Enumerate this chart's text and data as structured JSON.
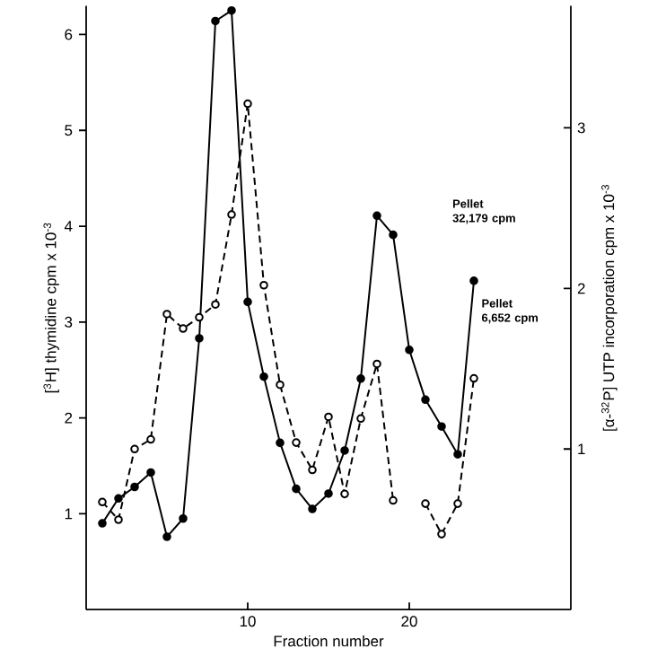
{
  "chart_data": {
    "type": "line",
    "xlabel": "Fraction number",
    "ylabel": "[$^{3}$H] thymidine  cpm x 10$^{-3}$",
    "y2label": "[α-$^{32}$P] UTP incorporation  cpm x 10$^{-3}$",
    "x": [
      1,
      2,
      3,
      4,
      5,
      6,
      7,
      8,
      9,
      10,
      11,
      12,
      13,
      14,
      15,
      16,
      17,
      18,
      19,
      20,
      21,
      22,
      23,
      24
    ],
    "series": [
      {
        "color": "#000000",
        "line_style": "solid",
        "marker": "circle",
        "values": [
          0.9,
          1.16,
          1.28,
          1.43,
          0.76,
          0.95,
          2.83,
          6.14,
          6.25,
          3.21,
          2.43,
          1.74,
          1.26,
          1.05,
          1.21,
          1.66,
          2.41,
          4.11,
          3.91,
          2.71,
          2.19,
          1.91,
          1.62,
          3.43
        ]
      },
      {
        "color": "#000000",
        "line_style": "dashed",
        "marker": "circle",
        "axis": "y2",
        "values": [
          0.67,
          0.56,
          1.0,
          1.06,
          1.84,
          1.75,
          1.82,
          1.9,
          2.46,
          3.15,
          2.02,
          1.4,
          1.04,
          0.87,
          1.2,
          0.72,
          1.19,
          1.53,
          0.68,
          null,
          0.66,
          0.47,
          0.66,
          1.44
        ]
      }
    ],
    "xlim": [
      0,
      30
    ],
    "xticks": [
      10,
      20
    ],
    "ylim": [
      0,
      6.3
    ],
    "yticks": [
      1,
      2,
      3,
      4,
      5,
      6
    ],
    "y2lim": [
      0,
      3.76
    ],
    "y2ticks": [
      1,
      2,
      3
    ],
    "annotations": [
      "Pellet 32,179 cpm",
      "Pellet 6,652 cpm"
    ]
  }
}
